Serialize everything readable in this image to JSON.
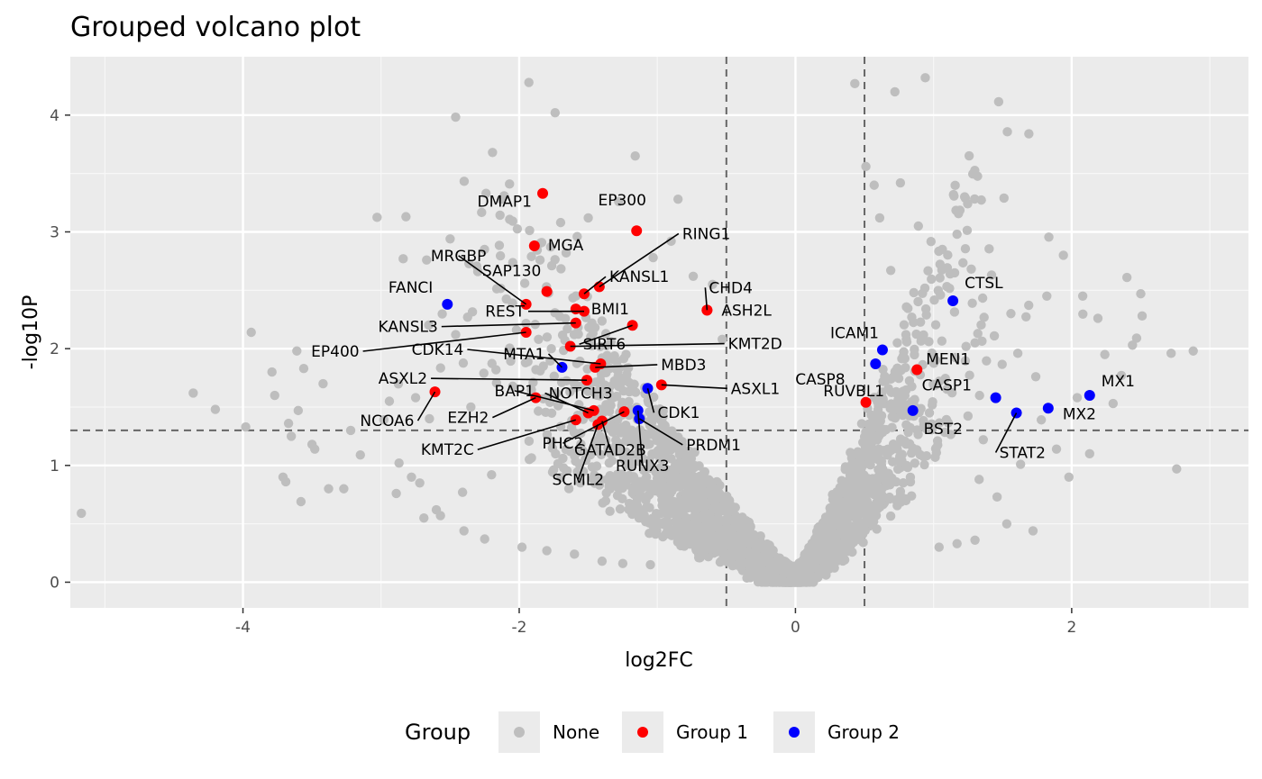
{
  "chart_data": {
    "type": "scatter",
    "title": "Grouped volcano plot",
    "xlabel": "log2FC",
    "ylabel": "-log10P",
    "xlim": [
      -5.25,
      3.28
    ],
    "ylim": [
      -0.22,
      4.5
    ],
    "x_ticks": [
      {
        "value": -4,
        "label": "-4"
      },
      {
        "value": -2,
        "label": "-2"
      },
      {
        "value": 0,
        "label": "0"
      },
      {
        "value": 2,
        "label": "2"
      }
    ],
    "y_ticks": [
      {
        "value": 0,
        "label": "0"
      },
      {
        "value": 1,
        "label": "1"
      },
      {
        "value": 2,
        "label": "2"
      },
      {
        "value": 3,
        "label": "3"
      },
      {
        "value": 4,
        "label": "4"
      }
    ],
    "thresholds": {
      "log2fc": [
        -0.5,
        0.5
      ],
      "neg_log10p": 1.3
    },
    "grid": true,
    "legend": {
      "title": "Group",
      "position": "bottom",
      "items": [
        {
          "name": "None",
          "color": "#bebebe"
        },
        {
          "name": "Group 1",
          "color": "#ff0000"
        },
        {
          "name": "Group 2",
          "color": "#0000ff"
        }
      ]
    },
    "colors": {
      "none": "#bebebe",
      "group1": "#ff0000",
      "group2": "#0000ff"
    },
    "series": [
      {
        "name": "Group 1",
        "points": [
          {
            "label": "DMAP1",
            "x": -1.83,
            "y": 3.33
          },
          {
            "label": "EP300",
            "x": -1.15,
            "y": 3.01
          },
          {
            "label": "MGA",
            "x": -1.89,
            "y": 2.88
          },
          {
            "label": "RING1",
            "x": -1.42,
            "y": 2.53
          },
          {
            "label": "SAP130",
            "x": -1.8,
            "y": 2.49
          },
          {
            "label": "KANSL1",
            "x": -1.53,
            "y": 2.47
          },
          {
            "label": "CHD4",
            "x": -0.64,
            "y": 2.33
          },
          {
            "label": "MRGBP",
            "x": -1.95,
            "y": 2.38
          },
          {
            "label": "ASH2L",
            "x": -0.64,
            "y": 2.33
          },
          {
            "label": "BMI1",
            "x": -1.59,
            "y": 2.34
          },
          {
            "label": "REST",
            "x": -1.53,
            "y": 2.32
          },
          {
            "label": "KANSL3",
            "x": -1.59,
            "y": 2.22
          },
          {
            "label": "SIRT6",
            "x": -1.18,
            "y": 2.2
          },
          {
            "label": "EP400",
            "x": -1.95,
            "y": 2.14
          },
          {
            "label": "KMT2D",
            "x": -1.63,
            "y": 2.02
          },
          {
            "label": "CDK14",
            "x": -1.41,
            "y": 1.87
          },
          {
            "label": "MBD3",
            "x": -1.45,
            "y": 1.84
          },
          {
            "label": "ASXL2",
            "x": -1.51,
            "y": 1.73
          },
          {
            "label": "ASXL1",
            "x": -0.97,
            "y": 1.69
          },
          {
            "label": "NCOA6",
            "x": -2.61,
            "y": 1.63
          },
          {
            "label": "EZH2",
            "x": -1.88,
            "y": 1.58
          },
          {
            "label": "BAP1",
            "x": -1.46,
            "y": 1.47
          },
          {
            "label": "NOTCH3",
            "x": -1.5,
            "y": 1.45
          },
          {
            "label": "KMT2C",
            "x": -1.59,
            "y": 1.39
          },
          {
            "label": "PHC2",
            "x": -1.24,
            "y": 1.46
          },
          {
            "label": "GATAD2B",
            "x": -1.4,
            "y": 1.38
          },
          {
            "label": "SCML2",
            "x": -1.43,
            "y": 1.35
          },
          {
            "label": "CASP8",
            "x": 0.51,
            "y": 1.54
          },
          {
            "label": "MEN1",
            "x": 0.88,
            "y": 1.82
          }
        ]
      },
      {
        "name": "Group 2",
        "points": [
          {
            "label": "FANCI",
            "x": -2.52,
            "y": 2.38
          },
          {
            "label": "MTA1",
            "x": -1.69,
            "y": 1.84
          },
          {
            "label": "CDK1",
            "x": -1.07,
            "y": 1.66
          },
          {
            "label": "RUNX3",
            "x": -1.14,
            "y": 1.47
          },
          {
            "label": "PRDM1",
            "x": -1.13,
            "y": 1.4
          },
          {
            "label": "CTSL",
            "x": 1.14,
            "y": 2.41
          },
          {
            "label": "ICAM1",
            "x": 0.63,
            "y": 1.99
          },
          {
            "label": "RUVBL1",
            "x": 0.58,
            "y": 1.87
          },
          {
            "label": "BST2",
            "x": 0.85,
            "y": 1.47
          },
          {
            "label": "CASP1",
            "x": 1.45,
            "y": 1.58
          },
          {
            "label": "STAT2",
            "x": 1.6,
            "y": 1.45
          },
          {
            "label": "MX2",
            "x": 1.83,
            "y": 1.49
          },
          {
            "label": "MX1",
            "x": 2.13,
            "y": 1.6
          }
        ]
      },
      {
        "name": "None",
        "points": [
          {
            "x": -5.17,
            "y": 0.59
          },
          {
            "x": -4.36,
            "y": 1.62
          },
          {
            "x": -4.2,
            "y": 1.48
          },
          {
            "x": -3.98,
            "y": 1.33
          },
          {
            "x": -3.94,
            "y": 2.14
          },
          {
            "x": -3.79,
            "y": 1.8
          },
          {
            "x": -3.77,
            "y": 1.6
          },
          {
            "x": -3.71,
            "y": 0.9
          },
          {
            "x": -3.69,
            "y": 0.86
          },
          {
            "x": -3.67,
            "y": 1.36
          },
          {
            "x": -3.65,
            "y": 1.25
          },
          {
            "x": -3.61,
            "y": 1.98
          },
          {
            "x": -3.6,
            "y": 1.47
          },
          {
            "x": -3.58,
            "y": 0.69
          },
          {
            "x": -3.56,
            "y": 1.83
          },
          {
            "x": -3.5,
            "y": 1.18
          },
          {
            "x": -3.48,
            "y": 1.14
          },
          {
            "x": -3.42,
            "y": 1.7
          },
          {
            "x": -3.38,
            "y": 0.8
          },
          {
            "x": -3.27,
            "y": 0.8
          },
          {
            "x": -3.22,
            "y": 1.3
          },
          {
            "x": -3.15,
            "y": 1.09
          },
          {
            "x": -2.98,
            "y": 1.39
          },
          {
            "x": -2.94,
            "y": 1.55
          },
          {
            "x": -2.89,
            "y": 0.76
          },
          {
            "x": -2.87,
            "y": 1.02
          },
          {
            "x": -2.84,
            "y": 2.77
          },
          {
            "x": -2.82,
            "y": 3.13
          },
          {
            "x": -2.78,
            "y": 0.9
          },
          {
            "x": -2.75,
            "y": 1.58
          },
          {
            "x": -2.72,
            "y": 0.85
          },
          {
            "x": -2.69,
            "y": 0.55
          },
          {
            "x": -2.65,
            "y": 1.4
          },
          {
            "x": -2.6,
            "y": 0.62
          },
          {
            "x": -2.57,
            "y": 0.57
          },
          {
            "x": -2.5,
            "y": 2.94
          },
          {
            "x": -2.46,
            "y": 2.12
          },
          {
            "x": -2.41,
            "y": 0.77
          },
          {
            "x": -2.35,
            "y": 1.5
          },
          {
            "x": -2.3,
            "y": 2.66
          },
          {
            "x": -2.24,
            "y": 3.33
          },
          {
            "x": -2.2,
            "y": 0.92
          },
          {
            "x": -2.13,
            "y": 3.28
          },
          {
            "x": -2.07,
            "y": 3.41
          },
          {
            "x": -2.02,
            "y": 2.16
          },
          {
            "x": -1.96,
            "y": 2.56
          },
          {
            "x": -1.93,
            "y": 4.28
          },
          {
            "x": -1.86,
            "y": 2.08
          },
          {
            "x": -1.74,
            "y": 4.02
          },
          {
            "x": -1.7,
            "y": 3.08
          },
          {
            "x": -1.66,
            "y": 2.82
          },
          {
            "x": -1.58,
            "y": 2.96
          },
          {
            "x": -1.5,
            "y": 3.12
          },
          {
            "x": -1.28,
            "y": 3.26
          },
          {
            "x": -1.16,
            "y": 3.65
          },
          {
            "x": -1.03,
            "y": 2.78
          },
          {
            "x": -0.9,
            "y": 2.92
          },
          {
            "x": -0.85,
            "y": 3.28
          },
          {
            "x": -0.74,
            "y": 2.62
          },
          {
            "x": -0.6,
            "y": 2.55
          },
          {
            "x": -0.53,
            "y": 2.08
          },
          {
            "x": 0.43,
            "y": 4.27
          },
          {
            "x": 0.51,
            "y": 3.56
          },
          {
            "x": 0.57,
            "y": 3.4
          },
          {
            "x": 0.61,
            "y": 3.12
          },
          {
            "x": 0.69,
            "y": 2.67
          },
          {
            "x": 0.72,
            "y": 4.2
          },
          {
            "x": 0.76,
            "y": 3.42
          },
          {
            "x": 0.8,
            "y": 2.12
          },
          {
            "x": 0.89,
            "y": 3.05
          },
          {
            "x": 0.94,
            "y": 4.32
          },
          {
            "x": 1.05,
            "y": 2.46
          },
          {
            "x": 1.12,
            "y": 2.64
          },
          {
            "x": 1.17,
            "y": 2.98
          },
          {
            "x": 1.23,
            "y": 3.29
          },
          {
            "x": 1.3,
            "y": 2.05
          },
          {
            "x": 1.36,
            "y": 1.22
          },
          {
            "x": 1.42,
            "y": 2.63
          },
          {
            "x": 1.44,
            "y": 2.11
          },
          {
            "x": 1.51,
            "y": 3.29
          },
          {
            "x": 1.56,
            "y": 2.3
          },
          {
            "x": 1.61,
            "y": 1.96
          },
          {
            "x": 1.69,
            "y": 3.84
          },
          {
            "x": 1.74,
            "y": 1.76
          },
          {
            "x": 1.78,
            "y": 1.39
          },
          {
            "x": 1.82,
            "y": 2.45
          },
          {
            "x": 1.89,
            "y": 1.14
          },
          {
            "x": 1.94,
            "y": 2.8
          },
          {
            "x": 1.98,
            "y": 0.9
          },
          {
            "x": 2.04,
            "y": 1.58
          },
          {
            "x": 2.08,
            "y": 2.45
          },
          {
            "x": 2.13,
            "y": 1.1
          },
          {
            "x": 2.19,
            "y": 2.26
          },
          {
            "x": 2.24,
            "y": 1.95
          },
          {
            "x": 2.3,
            "y": 1.53
          },
          {
            "x": 2.36,
            "y": 1.77
          },
          {
            "x": 2.4,
            "y": 2.61
          },
          {
            "x": 2.44,
            "y": 2.03
          },
          {
            "x": 2.47,
            "y": 2.09
          },
          {
            "x": 2.5,
            "y": 2.47
          },
          {
            "x": 2.51,
            "y": 2.28
          },
          {
            "x": 2.72,
            "y": 1.96
          },
          {
            "x": 2.76,
            "y": 0.97
          },
          {
            "x": 2.88,
            "y": 1.98
          },
          {
            "x": 1.04,
            "y": 0.3
          },
          {
            "x": 1.17,
            "y": 0.33
          },
          {
            "x": 1.3,
            "y": 0.36
          },
          {
            "x": 1.46,
            "y": 0.73
          },
          {
            "x": 1.53,
            "y": 0.5
          },
          {
            "x": 1.63,
            "y": 1.01
          },
          {
            "x": 1.72,
            "y": 0.44
          },
          {
            "x": 1.33,
            "y": 0.88
          },
          {
            "x": -2.4,
            "y": 0.44
          },
          {
            "x": -2.25,
            "y": 0.37
          },
          {
            "x": -1.98,
            "y": 0.3
          },
          {
            "x": -1.8,
            "y": 0.27
          },
          {
            "x": -1.6,
            "y": 0.24
          },
          {
            "x": -1.4,
            "y": 0.18
          },
          {
            "x": -1.25,
            "y": 0.16
          },
          {
            "x": -1.05,
            "y": 0.15
          }
        ]
      }
    ]
  }
}
